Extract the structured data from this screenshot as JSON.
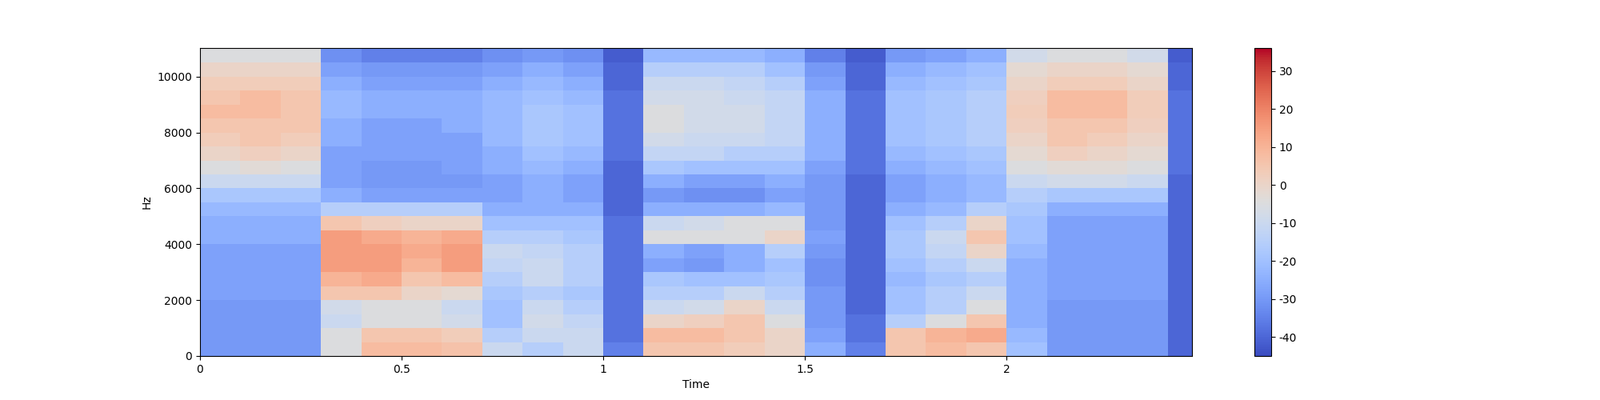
{
  "chart_data": {
    "type": "heatmap",
    "xlabel": "Time",
    "ylabel": "Hz",
    "xlim": [
      0,
      2.46
    ],
    "ylim": [
      0,
      11025
    ],
    "xticks": [
      0,
      0.5,
      1,
      1.5,
      2
    ],
    "yticks": [
      0,
      2000,
      4000,
      6000,
      8000,
      10000
    ],
    "x_edges": [
      0,
      0.1,
      0.2,
      0.3,
      0.4,
      0.5,
      0.6,
      0.7,
      0.8,
      0.9,
      1.0,
      1.1,
      1.2,
      1.3,
      1.4,
      1.5,
      1.6,
      1.7,
      1.8,
      1.9,
      2.0,
      2.1,
      2.2,
      2.3,
      2.4,
      2.46
    ],
    "y_edges": [
      0,
      500,
      1000,
      1500,
      2000,
      2500,
      3000,
      3500,
      4000,
      4500,
      5000,
      5500,
      6000,
      6500,
      7000,
      7500,
      8000,
      8500,
      9000,
      9500,
      10000,
      10500,
      11025
    ],
    "cells": [
      [
        -30,
        -30,
        -30,
        -5,
        8,
        8,
        6,
        -10,
        -15,
        -10,
        -35,
        5,
        5,
        3,
        0,
        -25,
        -35,
        5,
        8,
        5,
        -20,
        -30,
        -30,
        -30,
        -40
      ],
      [
        -30,
        -30,
        -30,
        -5,
        5,
        5,
        3,
        -15,
        -10,
        -10,
        -38,
        8,
        8,
        5,
        0,
        -28,
        -38,
        5,
        10,
        12,
        -22,
        -30,
        -30,
        -30,
        -40
      ],
      [
        -30,
        -30,
        -30,
        -10,
        -5,
        -5,
        -8,
        -20,
        -8,
        -12,
        -38,
        0,
        2,
        5,
        -5,
        -30,
        -38,
        -15,
        -5,
        5,
        -25,
        -30,
        -30,
        -30,
        -40
      ],
      [
        -30,
        -30,
        -30,
        -8,
        -5,
        -5,
        -10,
        -20,
        -10,
        -15,
        -38,
        -10,
        -8,
        0,
        -10,
        -30,
        -40,
        -20,
        -15,
        -5,
        -25,
        -30,
        -30,
        -30,
        -40
      ],
      [
        -28,
        -28,
        -28,
        5,
        5,
        0,
        -2,
        -18,
        -15,
        -18,
        -38,
        -15,
        -15,
        -10,
        -15,
        -30,
        -40,
        -20,
        -15,
        -10,
        -25,
        -28,
        -28,
        -28,
        -40
      ],
      [
        -28,
        -28,
        -28,
        10,
        12,
        5,
        8,
        -15,
        -10,
        -15,
        -38,
        -18,
        -20,
        -20,
        -18,
        -32,
        -40,
        -22,
        -18,
        -15,
        -25,
        -28,
        -28,
        -28,
        -40
      ],
      [
        -28,
        -28,
        -28,
        15,
        15,
        10,
        15,
        -12,
        -10,
        -15,
        -38,
        -28,
        -30,
        -25,
        -20,
        -32,
        -40,
        -20,
        -15,
        -10,
        -25,
        -28,
        -28,
        -28,
        -40
      ],
      [
        -28,
        -28,
        -28,
        15,
        15,
        12,
        15,
        -10,
        -12,
        -15,
        -38,
        -25,
        -28,
        -25,
        -15,
        -30,
        -40,
        -18,
        -12,
        0,
        -22,
        -28,
        -28,
        -28,
        -40
      ],
      [
        -25,
        -25,
        -25,
        15,
        12,
        10,
        12,
        -15,
        -15,
        -18,
        -38,
        -5,
        -5,
        -5,
        0,
        -28,
        -40,
        -18,
        -10,
        5,
        -20,
        -28,
        -28,
        -28,
        -40
      ],
      [
        -25,
        -25,
        -25,
        5,
        2,
        0,
        0,
        -20,
        -20,
        -20,
        -38,
        -10,
        -8,
        -5,
        -5,
        -30,
        -40,
        -20,
        -15,
        0,
        -20,
        -28,
        -28,
        -28,
        -40
      ],
      [
        -22,
        -22,
        -22,
        -15,
        -15,
        -15,
        -15,
        -25,
        -25,
        -25,
        -40,
        -25,
        -25,
        -25,
        -22,
        -30,
        -40,
        -25,
        -22,
        -15,
        -18,
        -25,
        -25,
        -25,
        -40
      ],
      [
        -18,
        -18,
        -18,
        -25,
        -28,
        -28,
        -28,
        -28,
        -25,
        -28,
        -40,
        -30,
        -32,
        -32,
        -28,
        -30,
        -40,
        -28,
        -25,
        -22,
        -15,
        -18,
        -18,
        -18,
        -40
      ],
      [
        -10,
        -10,
        -10,
        -28,
        -30,
        -30,
        -30,
        -28,
        -25,
        -28,
        -40,
        -25,
        -28,
        -28,
        -25,
        -30,
        -40,
        -28,
        -25,
        -22,
        -10,
        -8,
        -8,
        -10,
        -40
      ],
      [
        -5,
        -3,
        -5,
        -28,
        -30,
        -30,
        -28,
        -25,
        -22,
        -25,
        -40,
        -18,
        -20,
        -20,
        -20,
        -28,
        -38,
        -25,
        -22,
        -20,
        -5,
        -3,
        -3,
        -5,
        -38
      ],
      [
        0,
        2,
        0,
        -28,
        -28,
        -28,
        -28,
        -25,
        -20,
        -22,
        -38,
        -12,
        -12,
        -15,
        -15,
        -25,
        -38,
        -22,
        -20,
        -18,
        -2,
        2,
        0,
        -2,
        -38
      ],
      [
        3,
        5,
        3,
        -25,
        -28,
        -28,
        -28,
        -22,
        -18,
        -20,
        -38,
        -8,
        -10,
        -10,
        -12,
        -25,
        -38,
        -20,
        -18,
        -15,
        0,
        5,
        3,
        0,
        -38
      ],
      [
        5,
        5,
        5,
        -25,
        -28,
        -28,
        -25,
        -22,
        -18,
        -20,
        -38,
        -5,
        -8,
        -8,
        -12,
        -25,
        -38,
        -20,
        -18,
        -15,
        2,
        5,
        5,
        2,
        -38
      ],
      [
        8,
        8,
        5,
        -22,
        -25,
        -25,
        -25,
        -22,
        -18,
        -20,
        -38,
        -5,
        -8,
        -8,
        -12,
        -25,
        -38,
        -20,
        -18,
        -15,
        3,
        8,
        8,
        3,
        -38
      ],
      [
        5,
        8,
        5,
        -22,
        -25,
        -25,
        -25,
        -22,
        -20,
        -22,
        -38,
        -8,
        -8,
        -10,
        -12,
        -25,
        -38,
        -20,
        -18,
        -15,
        2,
        8,
        8,
        3,
        -38
      ],
      [
        3,
        3,
        3,
        -25,
        -28,
        -28,
        -28,
        -25,
        -22,
        -25,
        -40,
        -10,
        -10,
        -12,
        -15,
        -28,
        -40,
        -22,
        -20,
        -18,
        0,
        3,
        3,
        0,
        -40
      ],
      [
        0,
        0,
        0,
        -28,
        -30,
        -30,
        -30,
        -28,
        -25,
        -28,
        -40,
        -15,
        -15,
        -15,
        -20,
        -30,
        -40,
        -25,
        -22,
        -20,
        -2,
        0,
        0,
        -2,
        -40
      ],
      [
        -5,
        -5,
        -5,
        -32,
        -35,
        -35,
        -35,
        -32,
        -30,
        -32,
        -42,
        -22,
        -22,
        -22,
        -25,
        -35,
        -42,
        -30,
        -28,
        -25,
        -8,
        -5,
        -5,
        -8,
        -42
      ]
    ],
    "colorbar_range": [
      -45,
      36
    ],
    "colorbar_ticks": [
      -40,
      -30,
      -20,
      -10,
      0,
      10,
      20,
      30
    ]
  }
}
